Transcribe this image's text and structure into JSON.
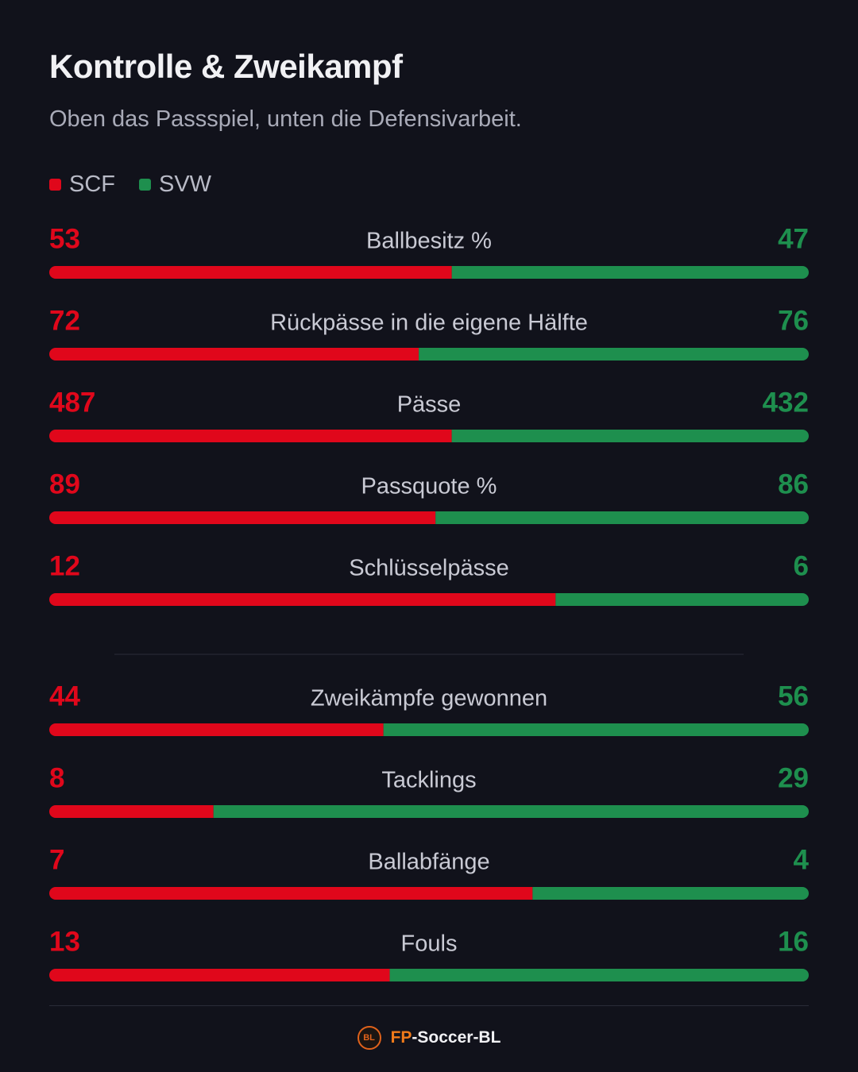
{
  "title": "Kontrolle & Zweikampf",
  "subtitle": "Oben das Passspiel, unten die Defensivarbeit.",
  "colors": {
    "home": "#e0071b",
    "away": "#1e8f4e",
    "label": "#c9cad4",
    "background": "#11121b"
  },
  "legend": [
    {
      "label": "SCF",
      "color": "#e0071b"
    },
    {
      "label": "SVW",
      "color": "#1e8f4e"
    }
  ],
  "chart_data": {
    "type": "bar",
    "orientation": "horizontal-diverging-stacked",
    "series": [
      {
        "name": "SCF",
        "color": "#e0071b"
      },
      {
        "name": "SVW",
        "color": "#1e8f4e"
      }
    ],
    "groups": [
      {
        "stats": [
          {
            "label": "Ballbesitz %",
            "home": 53,
            "away": 47
          },
          {
            "label": "Rückpässe in die eigene Hälfte",
            "home": 72,
            "away": 76
          },
          {
            "label": "Pässe",
            "home": 487,
            "away": 432
          },
          {
            "label": "Passquote %",
            "home": 89,
            "away": 86
          },
          {
            "label": "Schlüsselpässe",
            "home": 12,
            "away": 6
          }
        ]
      },
      {
        "stats": [
          {
            "label": "Zweikämpfe gewonnen",
            "home": 44,
            "away": 56
          },
          {
            "label": "Tacklings",
            "home": 8,
            "away": 29
          },
          {
            "label": "Ballabfänge",
            "home": 7,
            "away": 4
          },
          {
            "label": "Fouls",
            "home": 13,
            "away": 16
          }
        ]
      }
    ]
  },
  "footer": {
    "brand_prefix": "FP",
    "brand_suffix": "-Soccer-BL",
    "logo_text": "BL"
  }
}
